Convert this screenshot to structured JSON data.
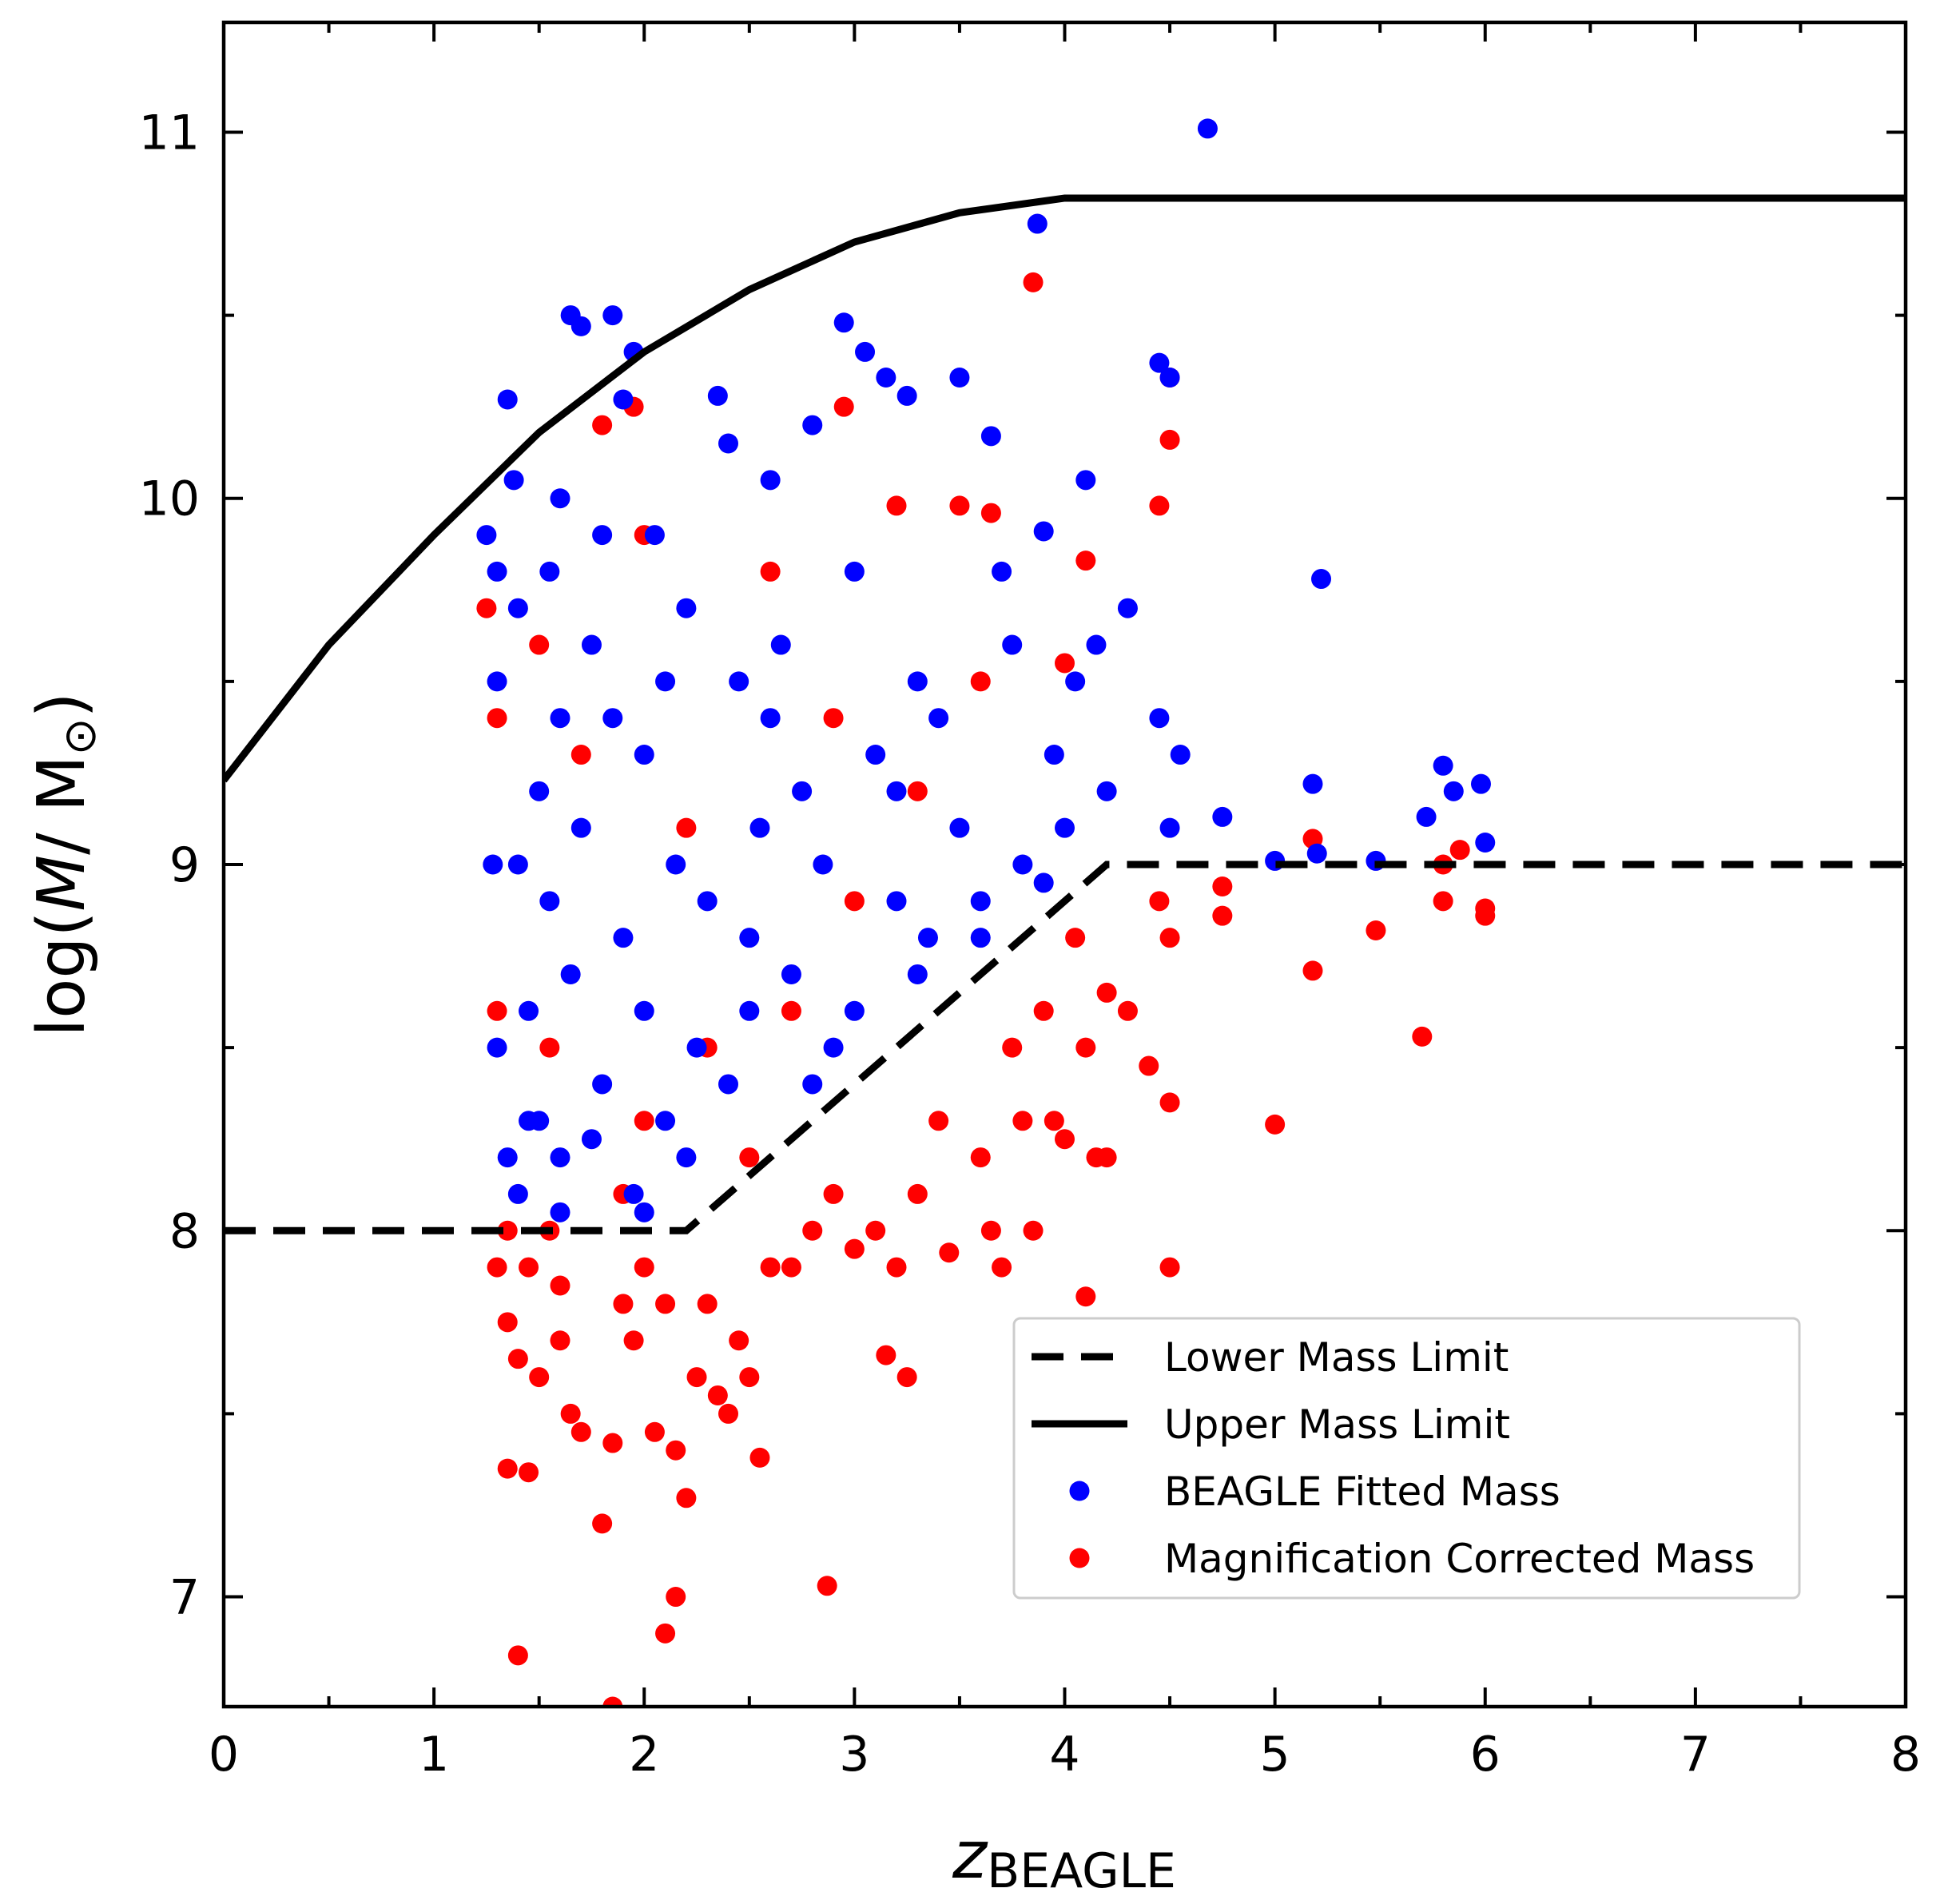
{
  "chart_data": {
    "type": "scatter",
    "xlabel": {
      "main": "z",
      "sub": "BEAGLE"
    },
    "ylabel": {
      "prefix": "log(",
      "var": "M",
      "rest": "/ M",
      "sub": "⊙",
      "suffix": ")"
    },
    "xlim": [
      0,
      8
    ],
    "ylim": [
      6.7,
      11.3
    ],
    "xticks": [
      0,
      1,
      2,
      3,
      4,
      5,
      6,
      7,
      8
    ],
    "yticks": [
      7,
      8,
      9,
      10,
      11
    ],
    "xticks_minor": [
      0.5,
      1.5,
      2.5,
      3.5,
      4.5,
      5.5,
      6.5,
      7.5
    ],
    "yticks_minor": [
      7.5,
      8.5,
      9.5,
      10.5
    ],
    "legend": "lower right",
    "grid": false,
    "series": [
      {
        "name": "Lower Mass Limit",
        "kind": "line",
        "dash": true,
        "color": "#000000",
        "x": [
          0,
          2.2,
          4.2,
          8
        ],
        "y": [
          8,
          8,
          9,
          9
        ]
      },
      {
        "name": "Upper Mass Limit",
        "kind": "line",
        "dash": false,
        "color": "#000000",
        "x": [
          0,
          0.5,
          1,
          1.5,
          2,
          2.5,
          3,
          3.5,
          4,
          8
        ],
        "y": [
          9.23,
          9.6,
          9.9,
          10.18,
          10.4,
          10.57,
          10.7,
          10.78,
          10.82,
          10.82
        ]
      },
      {
        "name": "BEAGLE Fitted Mass",
        "kind": "scatter",
        "color": "#0000ff",
        "x": [
          1.25,
          1.3,
          1.35,
          1.38,
          1.4,
          1.3,
          1.28,
          1.3,
          1.35,
          1.4,
          1.45,
          1.5,
          1.55,
          1.6,
          1.65,
          1.7,
          1.6,
          1.5,
          1.55,
          1.6,
          1.65,
          1.7,
          1.75,
          1.8,
          1.85,
          1.9,
          1.95,
          1.85,
          1.8,
          1.9,
          1.95,
          2.0,
          2.0,
          2.05,
          2.1,
          2.15,
          2.2,
          2.25,
          2.3,
          2.35,
          2.4,
          2.45,
          2.5,
          2.55,
          2.6,
          2.65,
          2.7,
          2.75,
          2.8,
          2.85,
          2.9,
          2.95,
          3.0,
          3.05,
          3.1,
          3.15,
          3.2,
          3.25,
          3.3,
          3.35,
          3.4,
          3.5,
          3.5,
          3.6,
          3.65,
          3.7,
          3.75,
          3.8,
          3.87,
          3.9,
          3.95,
          4.0,
          4.05,
          4.1,
          4.15,
          4.2,
          4.3,
          4.45,
          4.5,
          4.45,
          4.5,
          4.55,
          4.68,
          4.75,
          5.0,
          5.18,
          5.22,
          5.2,
          5.48,
          5.72,
          5.8,
          5.85,
          5.98,
          6.0,
          2.2,
          2.4,
          1.45,
          1.6,
          1.75,
          2.0,
          2.5,
          3.0,
          3.3,
          3.6,
          3.9,
          2.8,
          2.1,
          1.4,
          2.6,
          3.2
        ],
        "y": [
          9.9,
          9.8,
          10.27,
          10.05,
          9.7,
          9.5,
          9.0,
          8.5,
          8.2,
          8.1,
          8.6,
          9.2,
          9.8,
          10.0,
          10.5,
          10.47,
          9.4,
          8.3,
          8.9,
          8.2,
          8.7,
          9.1,
          9.6,
          9.9,
          10.5,
          10.27,
          10.4,
          9.4,
          8.4,
          8.8,
          8.1,
          9.3,
          8.6,
          9.9,
          8.3,
          9.0,
          9.7,
          8.5,
          8.9,
          10.28,
          10.15,
          9.5,
          8.8,
          9.1,
          10.05,
          9.6,
          8.7,
          9.2,
          10.2,
          9.0,
          8.5,
          10.48,
          9.8,
          10.4,
          9.3,
          10.33,
          8.9,
          10.28,
          9.5,
          8.8,
          9.4,
          10.33,
          9.1,
          8.8,
          10.17,
          9.8,
          9.6,
          9.0,
          10.75,
          9.91,
          9.3,
          9.1,
          9.5,
          10.05,
          9.6,
          9.2,
          9.7,
          10.37,
          10.33,
          9.4,
          9.1,
          9.3,
          11.01,
          9.13,
          9.01,
          9.22,
          9.78,
          9.03,
          9.01,
          9.13,
          9.27,
          9.2,
          9.22,
          9.06,
          8.2,
          8.4,
          8.3,
          8.05,
          8.25,
          8.05,
          8.6,
          8.6,
          8.7,
          8.9,
          8.95,
          8.4,
          9.5,
          9.0,
          9.4,
          9.2
        ]
      },
      {
        "name": "Magnification Corrected Mass",
        "kind": "scatter",
        "color": "#ff0000",
        "x": [
          1.25,
          1.3,
          1.3,
          1.35,
          1.3,
          1.35,
          1.4,
          1.45,
          1.35,
          1.45,
          1.4,
          1.5,
          1.55,
          1.6,
          1.65,
          1.7,
          1.8,
          1.85,
          1.85,
          1.9,
          1.95,
          2.0,
          2.05,
          2.1,
          2.15,
          2.2,
          2.15,
          2.25,
          2.3,
          2.35,
          2.4,
          2.45,
          2.5,
          2.55,
          2.6,
          2.7,
          2.8,
          2.87,
          2.9,
          3.0,
          3.1,
          3.15,
          3.25,
          3.2,
          3.3,
          3.4,
          3.45,
          3.6,
          3.65,
          3.7,
          3.75,
          3.8,
          3.85,
          3.9,
          3.95,
          4.0,
          4.05,
          4.1,
          4.15,
          4.2,
          4.2,
          4.3,
          4.4,
          4.45,
          4.5,
          4.5,
          4.5,
          4.45,
          4.5,
          4.5,
          3.85,
          2.95,
          1.8,
          1.95,
          2.0,
          4.1,
          4.75,
          4.75,
          5.0,
          5.18,
          5.18,
          5.48,
          5.7,
          5.8,
          5.8,
          5.88,
          6.0,
          6.0,
          4.1,
          2.0,
          2.3,
          2.5,
          2.7,
          3.0,
          3.3,
          3.5,
          3.65,
          3.2,
          2.6,
          2.2,
          1.7,
          1.5,
          1.55,
          2.9,
          3.6,
          4.0,
          1.9,
          2.1,
          1.6
        ],
        "y": [
          9.7,
          9.4,
          8.6,
          8.0,
          7.9,
          7.75,
          7.65,
          7.9,
          7.35,
          7.34,
          6.84,
          7.6,
          8.0,
          7.85,
          7.5,
          7.45,
          7.2,
          7.42,
          6.7,
          7.8,
          7.7,
          7.9,
          7.45,
          6.9,
          7.0,
          7.27,
          7.4,
          7.6,
          7.8,
          7.55,
          7.5,
          7.7,
          7.6,
          7.38,
          7.9,
          7.9,
          8.0,
          7.03,
          8.1,
          7.95,
          8.0,
          7.66,
          7.6,
          7.9,
          8.1,
          8.3,
          7.94,
          8.2,
          8.0,
          7.9,
          8.5,
          8.3,
          8.0,
          8.6,
          8.3,
          8.25,
          8.8,
          8.5,
          8.2,
          8.2,
          8.65,
          8.6,
          8.45,
          8.9,
          8.8,
          8.35,
          7.9,
          9.98,
          10.16,
          10.33,
          10.59,
          10.25,
          10.2,
          10.25,
          9.9,
          9.83,
          8.94,
          8.86,
          8.29,
          8.71,
          9.07,
          8.82,
          8.53,
          8.9,
          9.0,
          9.04,
          8.88,
          8.86,
          7.82,
          8.3,
          8.5,
          8.2,
          8.6,
          8.9,
          9.2,
          9.98,
          9.96,
          9.98,
          9.8,
          9.1,
          9.3,
          9.6,
          8.5,
          9.4,
          9.5,
          9.55,
          8.1,
          7.8,
          7.7
        ]
      }
    ]
  }
}
